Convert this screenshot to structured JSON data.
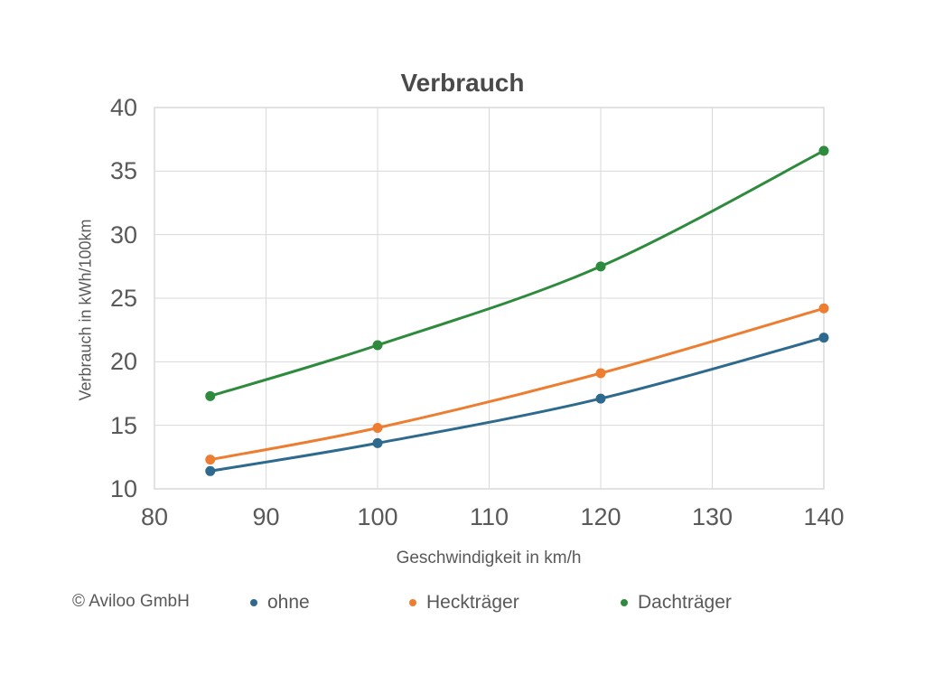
{
  "title": "Verbrauch",
  "axes": {
    "x": {
      "label": "Geschwindigkeit in km/h",
      "ticks": [
        80,
        90,
        100,
        110,
        120,
        130,
        140
      ]
    },
    "y": {
      "label": "Verbrauch in kWh/100km",
      "ticks": [
        10,
        15,
        20,
        25,
        30,
        35,
        40
      ]
    }
  },
  "chart_data": {
    "type": "line",
    "title": "Verbrauch",
    "xlabel": "Geschwindigkeit in km/h",
    "ylabel": "Verbrauch in kWh/100km",
    "x": [
      85,
      100,
      120,
      140
    ],
    "series": [
      {
        "name": "ohne",
        "color": "#2E6A8E",
        "values": [
          11.4,
          13.6,
          17.1,
          21.9
        ]
      },
      {
        "name": "Heckträger",
        "color": "#ED7D31",
        "values": [
          12.3,
          14.8,
          19.1,
          24.2
        ]
      },
      {
        "name": "Dachträger",
        "color": "#2E8B3D",
        "values": [
          17.3,
          21.3,
          27.5,
          36.6
        ]
      }
    ],
    "xlim": [
      80,
      140
    ],
    "ylim": [
      10,
      40
    ],
    "grid": true,
    "smooth": true,
    "marker": "circle",
    "legend_position": "bottom"
  },
  "footer": {
    "copyright": "© Aviloo GmbH"
  },
  "colors": {
    "text": "#595959",
    "title_text": "#4A4A4A",
    "gridline": "#D9D9D9",
    "plot_border": "#D9D9D9",
    "background": "#FFFFFF"
  }
}
